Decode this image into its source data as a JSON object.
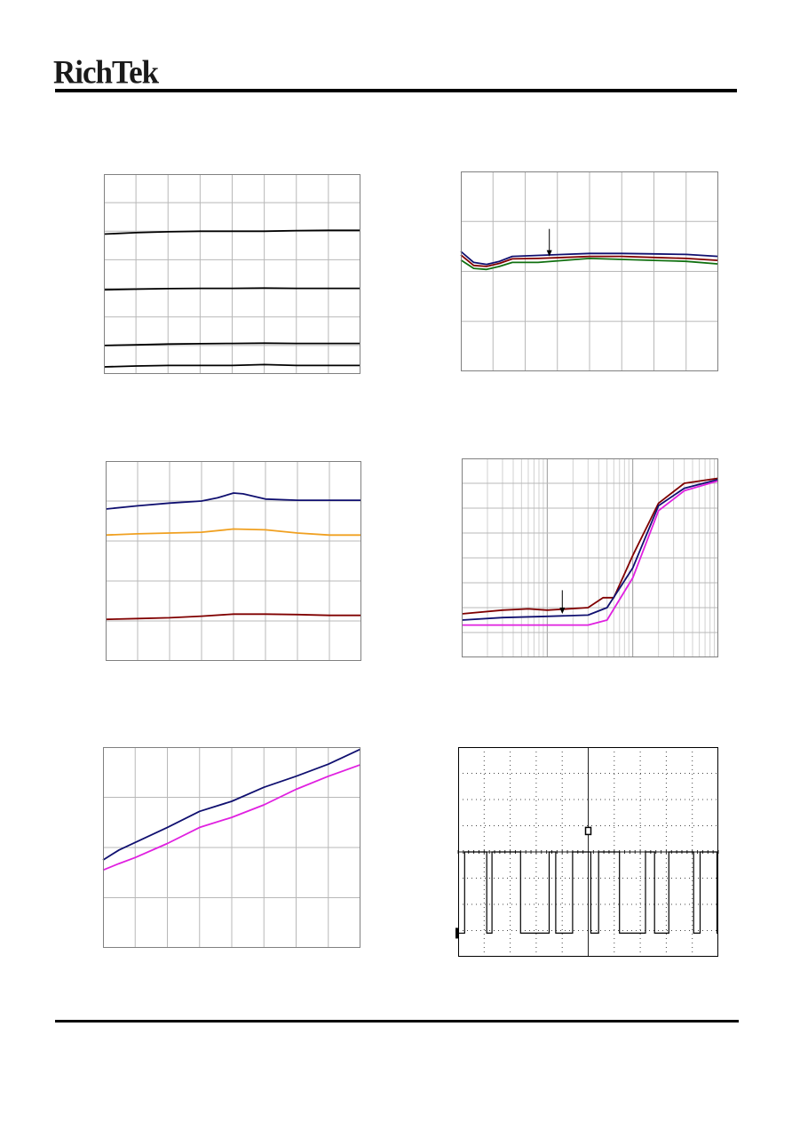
{
  "header": {
    "logo_text": "RichTek"
  },
  "colors": {
    "navy": "#101070",
    "maroon": "#800000",
    "green": "#107010",
    "orange": "#f0a020",
    "magenta": "#e020e0",
    "grid": "#b8b8b8",
    "frame": "#808080",
    "black": "#000000"
  },
  "chart_data": [
    {
      "type": "line",
      "title": "",
      "xlabel": "",
      "ylabel": "",
      "xlim": [
        0,
        8
      ],
      "ylim": [
        0,
        7
      ],
      "grid": true,
      "xgrid_divs": 8,
      "ygrid_divs": 7,
      "series": [
        {
          "color": "#000000",
          "points": [
            [
              0,
              4.9
            ],
            [
              1,
              4.95
            ],
            [
              2,
              4.98
            ],
            [
              3,
              5.0
            ],
            [
              4,
              5.0
            ],
            [
              5,
              5.0
            ],
            [
              6,
              5.02
            ],
            [
              7,
              5.03
            ],
            [
              8,
              5.03
            ]
          ]
        },
        {
          "color": "#000000",
          "points": [
            [
              0,
              2.95
            ],
            [
              1,
              2.97
            ],
            [
              2,
              2.99
            ],
            [
              3,
              3.0
            ],
            [
              4,
              3.0
            ],
            [
              5,
              3.01
            ],
            [
              6,
              3.0
            ],
            [
              7,
              3.0
            ],
            [
              8,
              3.0
            ]
          ]
        },
        {
          "color": "#000000",
          "points": [
            [
              0,
              1.0
            ],
            [
              1,
              1.02
            ],
            [
              2,
              1.05
            ],
            [
              3,
              1.06
            ],
            [
              4,
              1.07
            ],
            [
              5,
              1.08
            ],
            [
              6,
              1.07
            ],
            [
              7,
              1.07
            ],
            [
              8,
              1.07
            ]
          ]
        },
        {
          "color": "#000000",
          "points": [
            [
              0,
              0.25
            ],
            [
              1,
              0.28
            ],
            [
              2,
              0.3
            ],
            [
              3,
              0.3
            ],
            [
              4,
              0.3
            ],
            [
              5,
              0.33
            ],
            [
              6,
              0.3
            ],
            [
              7,
              0.3
            ],
            [
              8,
              0.3
            ]
          ]
        }
      ]
    },
    {
      "type": "line",
      "title": "",
      "xlabel": "",
      "ylabel": "",
      "xlim": [
        0,
        8
      ],
      "ylim": [
        0,
        4
      ],
      "grid": true,
      "xgrid_divs": 8,
      "ygrid_divs": 4,
      "series": [
        {
          "color": "#101070",
          "points": [
            [
              0,
              2.4
            ],
            [
              0.4,
              2.18
            ],
            [
              0.8,
              2.14
            ],
            [
              1.2,
              2.2
            ],
            [
              1.6,
              2.3
            ],
            [
              2.4,
              2.32
            ],
            [
              3.2,
              2.34
            ],
            [
              4,
              2.36
            ],
            [
              5,
              2.36
            ],
            [
              6,
              2.35
            ],
            [
              7,
              2.34
            ],
            [
              8,
              2.3
            ]
          ]
        },
        {
          "color": "#800000",
          "points": [
            [
              0,
              2.33
            ],
            [
              0.4,
              2.12
            ],
            [
              0.8,
              2.1
            ],
            [
              1.2,
              2.16
            ],
            [
              1.6,
              2.25
            ],
            [
              2.4,
              2.26
            ],
            [
              3.2,
              2.28
            ],
            [
              4,
              2.3
            ],
            [
              5,
              2.3
            ],
            [
              6,
              2.28
            ],
            [
              7,
              2.26
            ],
            [
              8,
              2.22
            ]
          ]
        },
        {
          "color": "#107010",
          "points": [
            [
              0,
              2.23
            ],
            [
              0.4,
              2.06
            ],
            [
              0.8,
              2.04
            ],
            [
              1.2,
              2.1
            ],
            [
              1.6,
              2.18
            ],
            [
              2.4,
              2.18
            ],
            [
              3.2,
              2.22
            ],
            [
              4,
              2.26
            ],
            [
              5,
              2.24
            ],
            [
              6,
              2.22
            ],
            [
              7,
              2.2
            ],
            [
              8,
              2.15
            ]
          ]
        }
      ],
      "annotation_arrow": {
        "x": 2.75,
        "y_from": 2.85,
        "y_to": 2.3
      }
    },
    {
      "type": "line",
      "title": "",
      "xlabel": "",
      "ylabel": "",
      "xlim": [
        0,
        8
      ],
      "ylim": [
        0,
        5
      ],
      "grid": true,
      "xgrid_divs": 8,
      "ygrid_divs": 5,
      "series": [
        {
          "color": "#101070",
          "points": [
            [
              0,
              3.8
            ],
            [
              1,
              3.88
            ],
            [
              2,
              3.95
            ],
            [
              3,
              4.0
            ],
            [
              3.5,
              4.08
            ],
            [
              4,
              4.2
            ],
            [
              4.3,
              4.18
            ],
            [
              5,
              4.05
            ],
            [
              6,
              4.02
            ],
            [
              7,
              4.02
            ],
            [
              8,
              4.02
            ]
          ]
        },
        {
          "color": "#f0a020",
          "points": [
            [
              0,
              3.15
            ],
            [
              1,
              3.18
            ],
            [
              2,
              3.2
            ],
            [
              3,
              3.22
            ],
            [
              4,
              3.3
            ],
            [
              5,
              3.28
            ],
            [
              6,
              3.2
            ],
            [
              7,
              3.15
            ],
            [
              8,
              3.15
            ]
          ]
        },
        {
          "color": "#800000",
          "points": [
            [
              0,
              1.04
            ],
            [
              1,
              1.06
            ],
            [
              2,
              1.08
            ],
            [
              3,
              1.12
            ],
            [
              4,
              1.17
            ],
            [
              5,
              1.17
            ],
            [
              6,
              1.16
            ],
            [
              7,
              1.14
            ],
            [
              8,
              1.14
            ]
          ]
        }
      ]
    },
    {
      "type": "line",
      "title": "",
      "xlabel": "",
      "ylabel": "",
      "xscale": "log",
      "xlim": [
        1,
        1000
      ],
      "ylim": [
        0,
        8
      ],
      "grid": true,
      "ygrid_divs": 8,
      "series": [
        {
          "color": "#800000",
          "points": [
            [
              1,
              1.75
            ],
            [
              3,
              1.9
            ],
            [
              6,
              1.95
            ],
            [
              10,
              1.9
            ],
            [
              30,
              2.0
            ],
            [
              45,
              2.4
            ],
            [
              60,
              2.4
            ],
            [
              100,
              4.1
            ],
            [
              200,
              6.2
            ],
            [
              400,
              7.0
            ],
            [
              1000,
              7.2
            ]
          ]
        },
        {
          "color": "#101070",
          "points": [
            [
              1,
              1.5
            ],
            [
              3,
              1.6
            ],
            [
              10,
              1.65
            ],
            [
              30,
              1.7
            ],
            [
              50,
              2.0
            ],
            [
              100,
              3.6
            ],
            [
              200,
              6.1
            ],
            [
              400,
              6.8
            ],
            [
              1000,
              7.15
            ]
          ]
        },
        {
          "color": "#e020e0",
          "points": [
            [
              1,
              1.3
            ],
            [
              3,
              1.3
            ],
            [
              10,
              1.3
            ],
            [
              30,
              1.3
            ],
            [
              50,
              1.5
            ],
            [
              100,
              3.2
            ],
            [
              200,
              5.9
            ],
            [
              400,
              6.7
            ],
            [
              1000,
              7.1
            ]
          ]
        }
      ],
      "annotation_arrow": {
        "x": 15,
        "y_from": 2.7,
        "y_to": 1.75
      }
    },
    {
      "type": "line",
      "title": "",
      "xlabel": "",
      "ylabel": "",
      "xlim": [
        0,
        8
      ],
      "ylim": [
        0,
        4
      ],
      "grid": true,
      "xgrid_divs": 8,
      "ygrid_divs": 4,
      "series": [
        {
          "color": "#101070",
          "points": [
            [
              0,
              1.75
            ],
            [
              0.5,
              1.95
            ],
            [
              1,
              2.1
            ],
            [
              2,
              2.4
            ],
            [
              3,
              2.72
            ],
            [
              4,
              2.92
            ],
            [
              5,
              3.2
            ],
            [
              6,
              3.42
            ],
            [
              7,
              3.66
            ],
            [
              8,
              3.96
            ]
          ]
        },
        {
          "color": "#e020e0",
          "points": [
            [
              0,
              1.55
            ],
            [
              0.5,
              1.68
            ],
            [
              1,
              1.8
            ],
            [
              2,
              2.08
            ],
            [
              3,
              2.4
            ],
            [
              4,
              2.6
            ],
            [
              5,
              2.85
            ],
            [
              6,
              3.16
            ],
            [
              7,
              3.42
            ],
            [
              8,
              3.65
            ]
          ]
        }
      ]
    },
    {
      "type": "scope",
      "title": "",
      "xlabel": "",
      "ylabel": "",
      "xlim": [
        0,
        10
      ],
      "ylim": [
        -4,
        4
      ],
      "grid": "dotted",
      "xgrid_divs": 10,
      "ygrid_divs": 8,
      "trace_color": "#000000",
      "high": 0.0,
      "low": -3.1,
      "rising_edges": [
        0.25,
        1.3,
        3.5,
        4.4,
        5.4,
        7.2,
        8.1,
        9.3
      ],
      "falling_edges": [
        1.1,
        2.4,
        3.75,
        5.1,
        6.2,
        7.55,
        9.05,
        9.95
      ]
    }
  ]
}
